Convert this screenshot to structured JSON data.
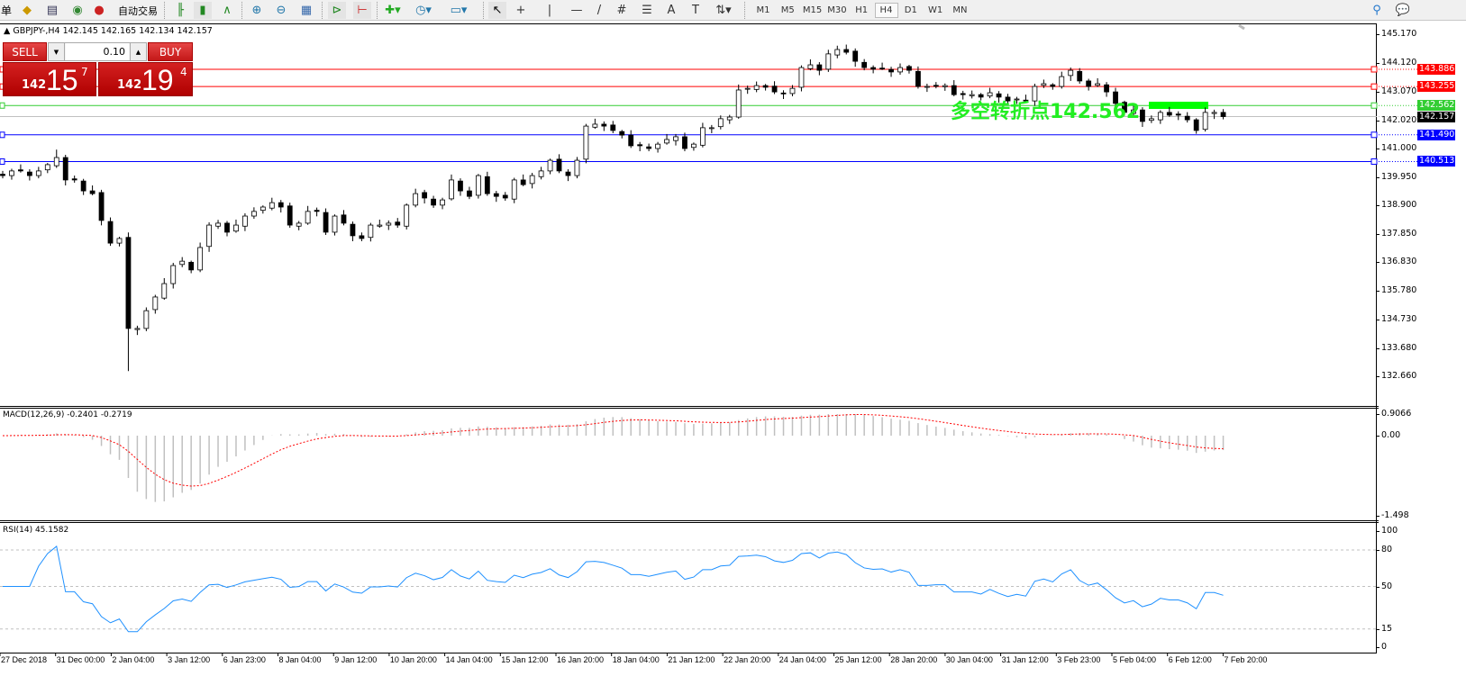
{
  "toolbar": {
    "menu_fragment": "单",
    "autotrade_label": "自动交易",
    "timeframes": [
      "M1",
      "M5",
      "M15",
      "M30",
      "H1",
      "H4",
      "D1",
      "W1",
      "MN"
    ],
    "active_timeframe": "H4",
    "icons": [
      "folder-icon",
      "navigator-icon",
      "signal-icon",
      "autotrade-icon",
      "bar-chart-icon",
      "candlestick-icon",
      "line-chart-icon",
      "zoom-in-icon",
      "zoom-out-icon",
      "tile-icon",
      "autoscroll-icon",
      "chart-shift-icon",
      "indicators-icon",
      "periods-icon",
      "templates-icon",
      "cursor-icon",
      "crosshair-icon",
      "vertical-line-icon",
      "horizontal-line-icon",
      "trendline-icon",
      "channel-icon",
      "fibonacci-icon",
      "text-icon",
      "label-icon",
      "arrows-icon",
      "search-icon",
      "chat-icon"
    ]
  },
  "chart": {
    "title": "GBPJPY-,H4  142.145 142.165 142.134 142.157",
    "trade": {
      "sell_label": "SELL",
      "buy_label": "BUY",
      "lot": "0.10",
      "sell_prefix": "142",
      "sell_big": "15",
      "sell_sup": "7",
      "buy_prefix": "142",
      "buy_big": "19",
      "buy_sup": "4"
    },
    "pivot_text": "多空转折点142.562",
    "price_axis": [
      "145.170",
      "144.120",
      "143.070",
      "142.020",
      "141.000",
      "139.950",
      "138.900",
      "137.850",
      "136.830",
      "135.780",
      "134.730",
      "133.680",
      "132.660"
    ],
    "levels": [
      {
        "label": "143.886",
        "price": 143.886,
        "color": "#ff0000"
      },
      {
        "label": "143.255",
        "price": 143.255,
        "color": "#ff0000"
      },
      {
        "label": "142.562",
        "price": 142.562,
        "color": "#32cd32"
      },
      {
        "label": "142.157",
        "price": 142.157,
        "color": "#000000",
        "line": "#c0c0c0"
      },
      {
        "label": "141.490",
        "price": 141.49,
        "color": "#0000ff"
      },
      {
        "label": "140.513",
        "price": 140.513,
        "color": "#0000ff"
      }
    ],
    "macd": {
      "title": "MACD(12,26,9) -0.2401 -0.2719",
      "axis": [
        "0.9066",
        "0.00",
        "-1.498"
      ],
      "signal_color": "#ff0000"
    },
    "rsi": {
      "title": "RSI(14) 45.1582",
      "axis": [
        "100",
        "80",
        "50",
        "15",
        "0"
      ],
      "color": "#1e90ff"
    },
    "time_axis": [
      "27 Dec 2018",
      "31 Dec 00:00",
      "2 Jan 04:00",
      "3 Jan 12:00",
      "6 Jan 23:00",
      "8 Jan 04:00",
      "9 Jan 12:00",
      "10 Jan 20:00",
      "14 Jan 04:00",
      "15 Jan 12:00",
      "16 Jan 20:00",
      "18 Jan 04:00",
      "21 Jan 12:00",
      "22 Jan 20:00",
      "24 Jan 04:00",
      "25 Jan 12:00",
      "28 Jan 20:00",
      "30 Jan 04:00",
      "31 Jan 12:00",
      "3 Feb 23:00",
      "5 Feb 04:00",
      "6 Feb 12:00",
      "7 Feb 20:00"
    ]
  },
  "chart_data": {
    "type": "candlestick",
    "symbol": "GBPJPY-",
    "timeframe": "H4",
    "ylim": [
      132.66,
      145.17
    ],
    "closes": [
      140.0,
      140.17,
      140.17,
      140.0,
      140.17,
      140.4,
      140.66,
      139.84,
      139.84,
      139.44,
      139.34,
      138.36,
      137.53,
      137.7,
      134.41,
      134.41,
      135.06,
      135.56,
      136.05,
      136.71,
      136.87,
      136.55,
      137.37,
      138.19,
      138.26,
      137.93,
      138.19,
      138.52,
      138.69,
      138.85,
      139.01,
      138.85,
      138.19,
      138.26,
      138.69,
      138.69,
      137.93,
      138.52,
      138.26,
      137.8,
      137.7,
      138.19,
      138.19,
      138.26,
      138.19,
      138.92,
      139.34,
      139.18,
      138.92,
      139.11,
      139.84,
      139.44,
      139.24,
      140.0,
      139.34,
      139.24,
      139.18,
      139.84,
      139.67,
      140.0,
      140.17,
      140.56,
      140.17,
      140.0,
      140.56,
      141.81,
      141.88,
      141.81,
      141.65,
      141.48,
      141.09,
      141.09,
      140.99,
      141.15,
      141.32,
      141.42,
      140.99,
      141.15,
      141.75,
      141.75,
      142.08,
      142.14,
      143.13,
      143.19,
      143.29,
      143.23,
      143.06,
      143.0,
      143.19,
      143.95,
      144.05,
      143.85,
      144.45,
      144.61,
      144.51,
      144.18,
      143.95,
      143.89,
      143.92,
      143.79,
      143.95,
      143.85,
      143.26,
      143.26,
      143.29,
      143.29,
      142.96,
      142.96,
      142.96,
      142.87,
      143.03,
      142.87,
      142.73,
      142.8,
      142.73,
      143.26,
      143.36,
      143.26,
      143.62,
      143.85,
      143.46,
      143.26,
      143.36,
      143.06,
      142.64,
      142.31,
      142.4,
      141.98,
      142.08,
      142.31,
      142.21,
      142.21,
      142.04,
      141.65,
      142.31,
      142.31,
      142.157
    ]
  }
}
